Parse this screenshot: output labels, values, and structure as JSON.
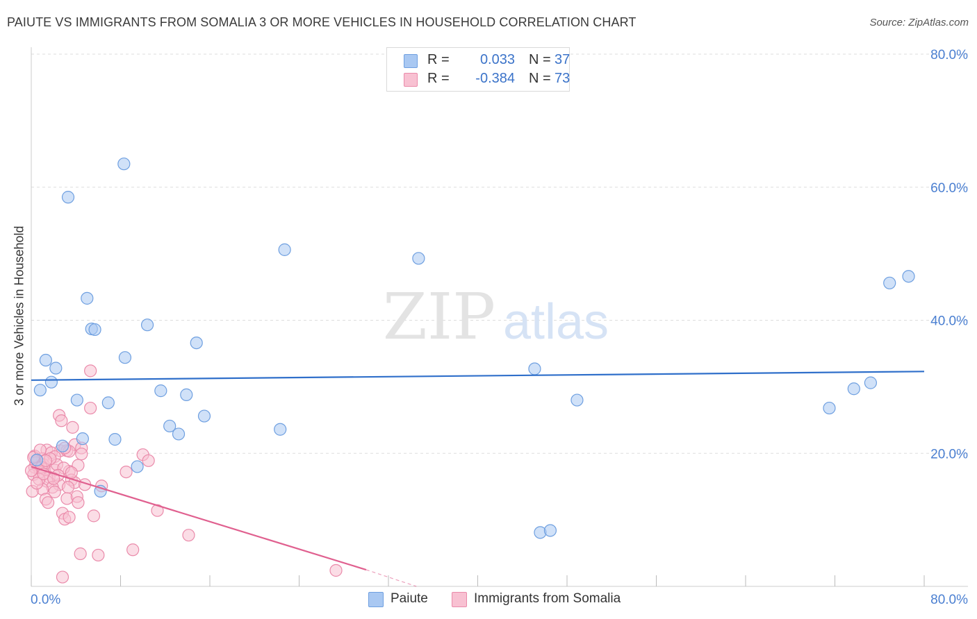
{
  "title": "PAIUTE VS IMMIGRANTS FROM SOMALIA 3 OR MORE VEHICLES IN HOUSEHOLD CORRELATION CHART",
  "source": "Source: ZipAtlas.com",
  "watermark": {
    "zip": "ZIP",
    "atlas": "atlas"
  },
  "legend": {
    "rows": [
      {
        "r_label": "R =",
        "r_value": "0.033",
        "n_label": "N =",
        "n_value": "37",
        "color": "#a9c8f2",
        "border": "#6e9fe0"
      },
      {
        "r_label": "R =",
        "r_value": "-0.384",
        "n_label": "N =",
        "n_value": "73",
        "color": "#f8c1d2",
        "border": "#ea8aaa"
      }
    ]
  },
  "bottom_legend": [
    {
      "label": "Paiute",
      "color": "#a9c8f2",
      "border": "#6e9fe0"
    },
    {
      "label": "Immigrants from Somalia",
      "color": "#f8c1d2",
      "border": "#ea8aaa"
    }
  ],
  "chart_data": {
    "type": "scatter",
    "title": "PAIUTE VS IMMIGRANTS FROM SOMALIA 3 OR MORE VEHICLES IN HOUSEHOLD CORRELATION CHART",
    "xlabel": "",
    "ylabel": "3 or more Vehicles in Household",
    "xlim": [
      0,
      80
    ],
    "ylim": [
      0,
      80
    ],
    "x_tick_labels": [
      "0.0%",
      "80.0%"
    ],
    "y_ticks": [
      20,
      40,
      60,
      80
    ],
    "y_tick_labels": [
      "20.0%",
      "40.0%",
      "60.0%",
      "80.0%"
    ],
    "grid": true,
    "series": [
      {
        "name": "Paiute",
        "color": "#6e9fe0",
        "fill": "#a9c8f2",
        "trend_color": "#2f6fca",
        "trend": {
          "x": [
            0,
            80
          ],
          "y": [
            31.0,
            32.3
          ]
        },
        "points": [
          [
            8.3,
            63.5
          ],
          [
            3.3,
            58.5
          ],
          [
            22.7,
            50.6
          ],
          [
            34.7,
            49.3
          ],
          [
            76.9,
            45.6
          ],
          [
            78.6,
            46.6
          ],
          [
            5.0,
            43.3
          ],
          [
            5.4,
            38.7
          ],
          [
            5.7,
            38.6
          ],
          [
            10.4,
            39.3
          ],
          [
            14.8,
            36.6
          ],
          [
            8.4,
            34.4
          ],
          [
            1.3,
            34.0
          ],
          [
            2.2,
            32.8
          ],
          [
            1.8,
            30.7
          ],
          [
            0.8,
            29.5
          ],
          [
            45.1,
            32.7
          ],
          [
            75.2,
            30.6
          ],
          [
            73.7,
            29.7
          ],
          [
            11.6,
            29.4
          ],
          [
            13.9,
            28.8
          ],
          [
            4.1,
            28.0
          ],
          [
            6.9,
            27.6
          ],
          [
            48.9,
            28.0
          ],
          [
            71.5,
            26.8
          ],
          [
            15.5,
            25.6
          ],
          [
            12.4,
            24.1
          ],
          [
            13.2,
            22.9
          ],
          [
            22.3,
            23.6
          ],
          [
            7.5,
            22.1
          ],
          [
            4.6,
            22.2
          ],
          [
            2.8,
            21.1
          ],
          [
            9.5,
            18.0
          ],
          [
            6.2,
            14.3
          ],
          [
            45.6,
            8.1
          ],
          [
            46.5,
            8.4
          ],
          [
            0.5,
            19.0
          ]
        ]
      },
      {
        "name": "Immigrants from Somalia",
        "color": "#ea8aaa",
        "fill": "#f8c1d2",
        "trend_color": "#e0608f",
        "trend": {
          "x": [
            0,
            30
          ],
          "y": [
            18.0,
            2.5
          ]
        },
        "trend_dashed_extension": {
          "x": [
            30,
            34.5
          ],
          "y": [
            2.5,
            0.0
          ]
        },
        "points": [
          [
            5.3,
            32.4
          ],
          [
            2.5,
            25.7
          ],
          [
            2.7,
            24.9
          ],
          [
            5.3,
            26.8
          ],
          [
            3.7,
            23.9
          ],
          [
            3.9,
            21.3
          ],
          [
            2.6,
            20.4
          ],
          [
            1.4,
            20.5
          ],
          [
            0.3,
            19.6
          ],
          [
            1.0,
            19.2
          ],
          [
            1.8,
            20.1
          ],
          [
            2.1,
            19.5
          ],
          [
            4.5,
            20.8
          ],
          [
            3.2,
            20.4
          ],
          [
            3.4,
            20.3
          ],
          [
            0.5,
            18.9
          ],
          [
            1.1,
            18.3
          ],
          [
            0.3,
            17.9
          ],
          [
            0.6,
            18.0
          ],
          [
            1.2,
            17.6
          ],
          [
            2.1,
            17.5
          ],
          [
            0.8,
            17.2
          ],
          [
            0.2,
            16.8
          ],
          [
            1.6,
            16.4
          ],
          [
            3.4,
            17.3
          ],
          [
            4.2,
            18.2
          ],
          [
            3.6,
            16.0
          ],
          [
            3.9,
            15.6
          ],
          [
            1.4,
            15.8
          ],
          [
            2.5,
            15.3
          ],
          [
            1.9,
            14.9
          ],
          [
            1.0,
            14.6
          ],
          [
            0.1,
            14.3
          ],
          [
            3.3,
            14.9
          ],
          [
            4.8,
            15.3
          ],
          [
            6.3,
            15.1
          ],
          [
            2.1,
            14.2
          ],
          [
            1.3,
            13.1
          ],
          [
            1.5,
            12.6
          ],
          [
            3.2,
            13.2
          ],
          [
            4.1,
            13.5
          ],
          [
            4.2,
            12.6
          ],
          [
            2.8,
            11.0
          ],
          [
            3.0,
            10.1
          ],
          [
            3.4,
            10.4
          ],
          [
            5.6,
            10.6
          ],
          [
            10.0,
            19.8
          ],
          [
            10.5,
            18.9
          ],
          [
            8.5,
            17.2
          ],
          [
            11.3,
            11.4
          ],
          [
            14.1,
            7.7
          ],
          [
            4.4,
            4.9
          ],
          [
            6.0,
            4.7
          ],
          [
            9.1,
            5.5
          ],
          [
            2.8,
            1.4
          ],
          [
            27.3,
            2.4
          ],
          [
            0.4,
            18.6
          ],
          [
            0.9,
            17.9
          ],
          [
            2.3,
            18.3
          ],
          [
            0.7,
            16.1
          ],
          [
            1.7,
            19.2
          ],
          [
            2.9,
            17.8
          ],
          [
            0.2,
            19.4
          ],
          [
            1.3,
            18.9
          ],
          [
            2.4,
            16.7
          ],
          [
            3.6,
            17.1
          ],
          [
            0.5,
            15.5
          ],
          [
            4.5,
            19.9
          ],
          [
            0.8,
            20.5
          ],
          [
            3.0,
            20.8
          ],
          [
            1.1,
            16.9
          ],
          [
            0.0,
            17.4
          ],
          [
            2.0,
            16.2
          ]
        ]
      }
    ]
  }
}
